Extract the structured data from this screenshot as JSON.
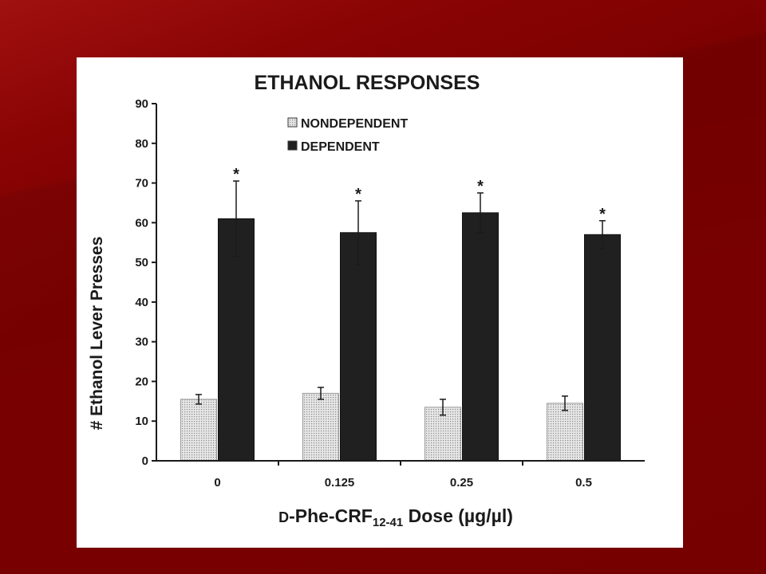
{
  "chart_data": {
    "type": "bar",
    "title": "ETHANOL RESPONSES",
    "xlabel": {
      "prefix": "D",
      "main": "-Phe-CRF",
      "sub": "12-41",
      "suffix": " Dose (µg/µl)"
    },
    "ylabel": "# Ethanol Lever Presses",
    "categories": [
      "0",
      "0.125",
      "0.25",
      "0.5"
    ],
    "ylim": [
      0,
      90
    ],
    "yticks": [
      0,
      10,
      20,
      30,
      40,
      50,
      60,
      70,
      80,
      90
    ],
    "grid": false,
    "legend": "top-center",
    "series": [
      {
        "name": "NONDEPENDENT",
        "values": [
          15.5,
          17,
          13.5,
          14.5
        ],
        "errors": [
          1.2,
          1.5,
          2,
          1.8
        ],
        "pattern": "dotted",
        "color": "#d9d9d9",
        "annotations": [
          "",
          "",
          "",
          ""
        ]
      },
      {
        "name": "DEPENDENT",
        "values": [
          61,
          57.5,
          62.5,
          57
        ],
        "errors": [
          9.5,
          8,
          5,
          3.5
        ],
        "color": "#202020",
        "annotations": [
          "*",
          "*",
          "*",
          "*"
        ]
      }
    ]
  }
}
